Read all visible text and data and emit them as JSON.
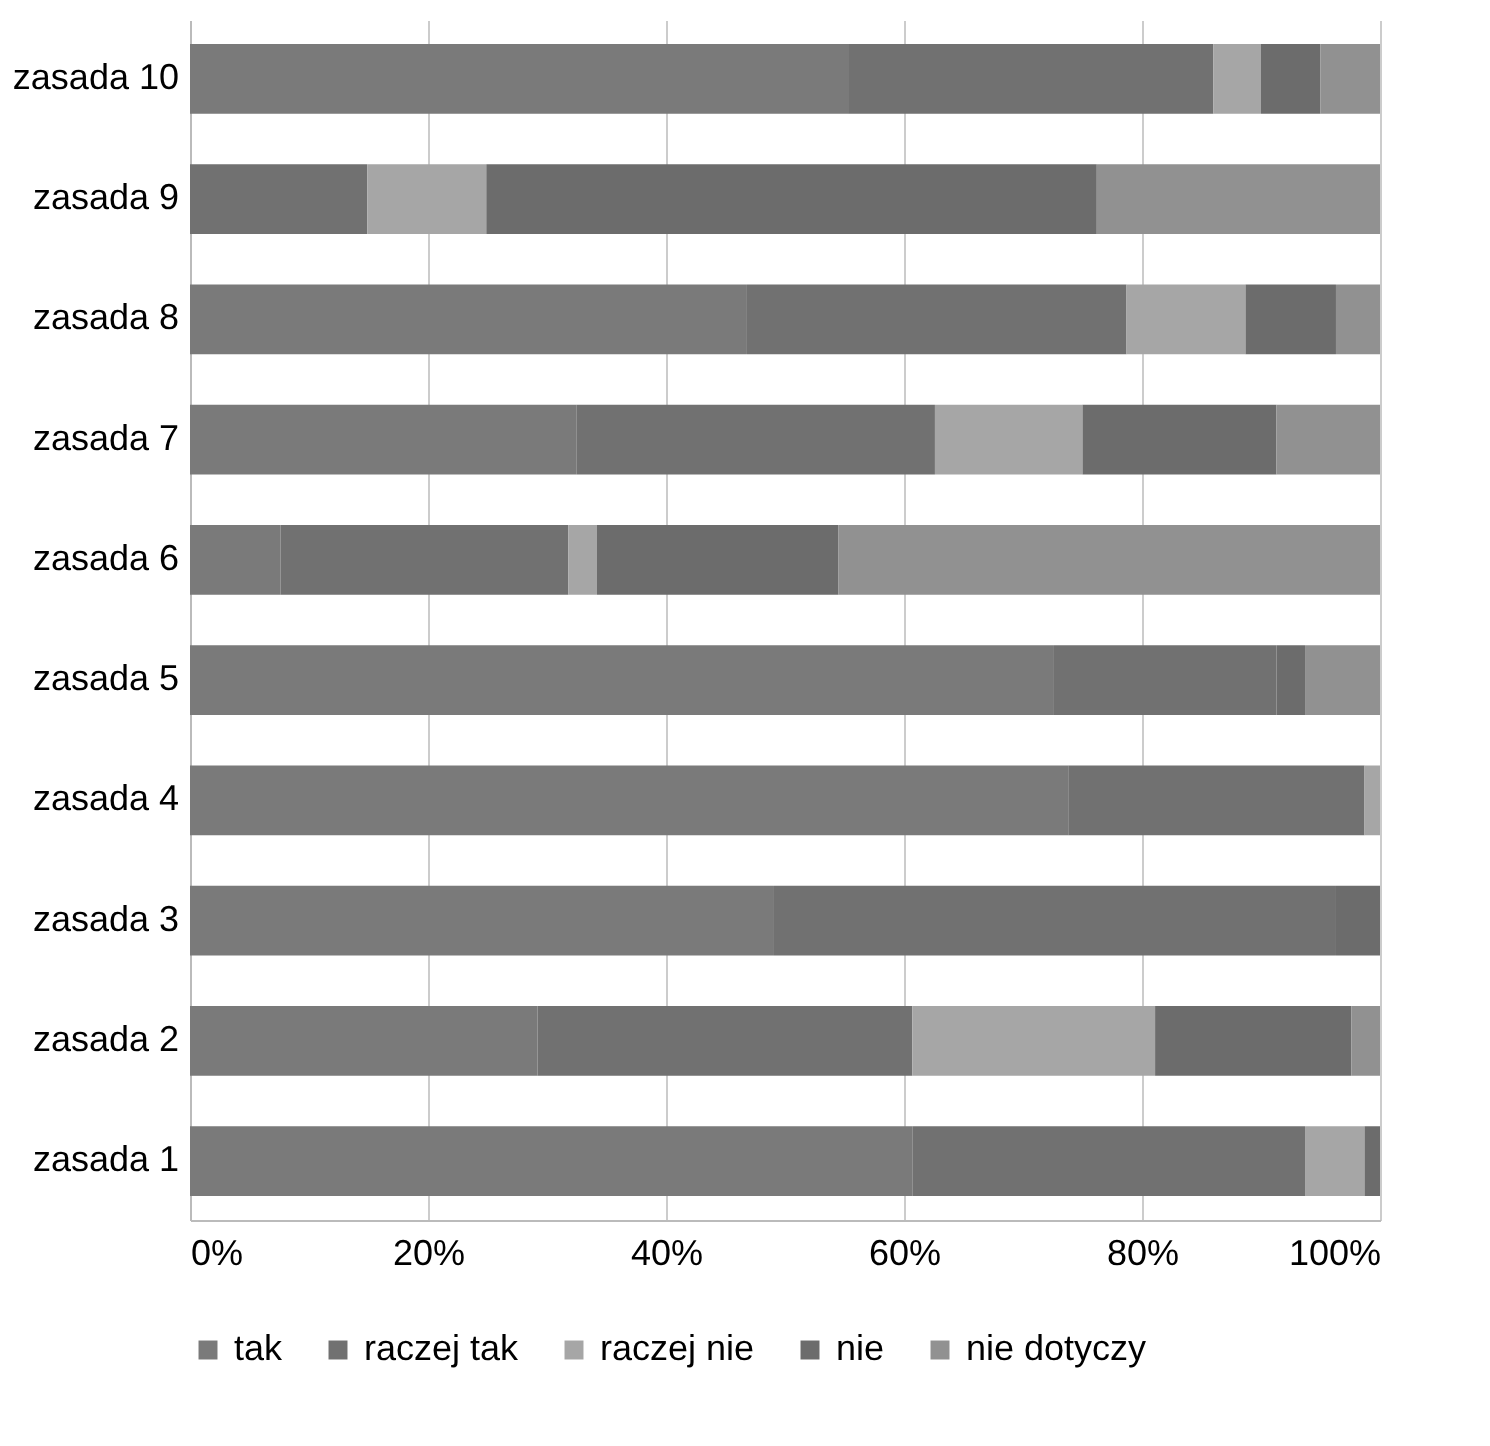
{
  "chart_data": {
    "type": "bar",
    "orientation": "horizontal",
    "stacked": true,
    "categories": [
      "zasada 10",
      "zasada 9",
      "zasada 8",
      "zasada 7",
      "zasada 6",
      "zasada 5",
      "zasada 4",
      "zasada 3",
      "zasada 2",
      "zasada 1"
    ],
    "series": [
      {
        "name": "tak",
        "color": "#7a7a7a",
        "values": [
          55.3,
          0,
          46.8,
          32.5,
          7.6,
          72.6,
          73.8,
          49.0,
          29.2,
          60.7
        ]
      },
      {
        "name": "raczej tak",
        "color": "#717171",
        "values": [
          30.7,
          14.9,
          31.9,
          30.1,
          24.2,
          18.7,
          24.9,
          47.3,
          31.5,
          33.0
        ]
      },
      {
        "name": "raczej nie",
        "color": "#a6a6a6",
        "values": [
          4.0,
          10.0,
          10.0,
          12.4,
          2.4,
          0,
          1.3,
          0,
          20.4,
          5.0
        ]
      },
      {
        "name": "nie",
        "color": "#6c6c6c",
        "values": [
          5.0,
          51.3,
          7.6,
          16.3,
          20.3,
          2.4,
          0,
          3.7,
          16.5,
          1.3
        ]
      },
      {
        "name": "nie dotyczy",
        "color": "#919191",
        "values": [
          5.0,
          23.8,
          3.7,
          8.7,
          45.5,
          6.3,
          0,
          0,
          2.4,
          0
        ]
      }
    ],
    "xlim": [
      0,
      100
    ],
    "xticks": [
      {
        "value": 0,
        "label": "0%"
      },
      {
        "value": 20,
        "label": "20%"
      },
      {
        "value": 40,
        "label": "40%"
      },
      {
        "value": 60,
        "label": "60%"
      },
      {
        "value": 80,
        "label": "80%"
      },
      {
        "value": 100,
        "label": "100%"
      }
    ],
    "grid": "x",
    "legend": "bottom"
  }
}
